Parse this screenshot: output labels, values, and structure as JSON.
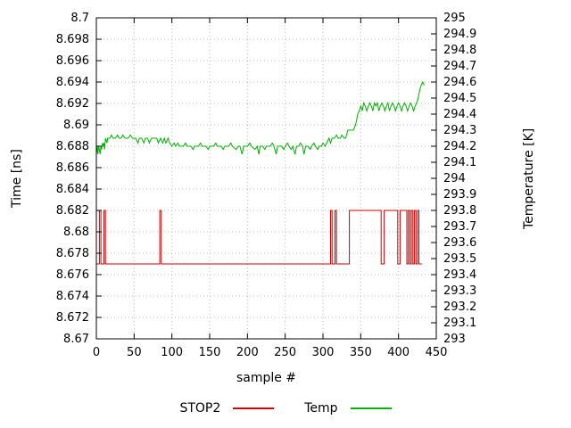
{
  "colors": {
    "stop2": "#cc0000",
    "temp": "#00b000",
    "grid": "#b8b8b8",
    "border": "#000000",
    "text": "#000000"
  },
  "legend": {
    "stop2_label": "STOP2",
    "temp_label": "Temp"
  },
  "chart_data": {
    "type": "line",
    "title": "",
    "xlabel": "sample #",
    "ylabel_left": "Time [ns]",
    "ylabel_right": "Temperature [K]",
    "x_range": [
      0,
      450
    ],
    "y_left_range": [
      8.67,
      8.7
    ],
    "y_right_range": [
      293,
      295
    ],
    "grid": true,
    "legend_position": "bottom-center",
    "x_ticks": [
      0,
      50,
      100,
      150,
      200,
      250,
      300,
      350,
      400,
      450
    ],
    "x_tick_labels": [
      "0",
      "50",
      "100",
      "150",
      "200",
      "250",
      "300",
      "350",
      "400",
      "450"
    ],
    "y_left_ticks": [
      8.67,
      8.672,
      8.674,
      8.676,
      8.678,
      8.68,
      8.682,
      8.684,
      8.686,
      8.688,
      8.69,
      8.692,
      8.694,
      8.696,
      8.698,
      8.7
    ],
    "y_left_tick_labels": [
      "8.67",
      "8.672",
      "8.674",
      "8.676",
      "8.678",
      "8.68",
      "8.682",
      "8.684",
      "8.686",
      "8.688",
      "8.69",
      "8.692",
      "8.694",
      "8.696",
      "8.698",
      "8.7"
    ],
    "y_right_ticks": [
      293,
      293.1,
      293.2,
      293.3,
      293.4,
      293.5,
      293.6,
      293.7,
      293.8,
      293.9,
      294,
      294.1,
      294.2,
      294.3,
      294.4,
      294.5,
      294.6,
      294.7,
      294.8,
      294.9,
      295
    ],
    "y_right_tick_labels": [
      "293",
      "293.1",
      "293.2",
      "293.3",
      "293.4",
      "293.5",
      "293.6",
      "293.7",
      "293.8",
      "293.9",
      "294",
      "294.1",
      "294.2",
      "294.3",
      "294.4",
      "294.5",
      "294.6",
      "294.7",
      "294.8",
      "294.9",
      "295"
    ],
    "series": [
      {
        "name": "STOP2",
        "axis": "left",
        "color": "#cc0000",
        "points": [
          [
            0,
            8.677
          ],
          [
            4,
            8.677
          ],
          [
            4,
            8.682
          ],
          [
            6,
            8.682
          ],
          [
            6,
            8.677
          ],
          [
            10,
            8.677
          ],
          [
            10,
            8.682
          ],
          [
            12,
            8.682
          ],
          [
            12,
            8.677
          ],
          [
            84,
            8.677
          ],
          [
            84,
            8.682
          ],
          [
            86,
            8.682
          ],
          [
            86,
            8.677
          ],
          [
            310,
            8.677
          ],
          [
            310,
            8.682
          ],
          [
            312,
            8.682
          ],
          [
            312,
            8.677
          ],
          [
            316,
            8.677
          ],
          [
            316,
            8.682
          ],
          [
            318,
            8.682
          ],
          [
            318,
            8.677
          ],
          [
            335,
            8.677
          ],
          [
            335,
            8.682
          ],
          [
            377,
            8.682
          ],
          [
            377,
            8.677
          ],
          [
            381,
            8.677
          ],
          [
            381,
            8.682
          ],
          [
            399,
            8.682
          ],
          [
            399,
            8.677
          ],
          [
            402,
            8.677
          ],
          [
            402,
            8.682
          ],
          [
            411,
            8.682
          ],
          [
            411,
            8.677
          ],
          [
            413,
            8.677
          ],
          [
            413,
            8.682
          ],
          [
            415,
            8.682
          ],
          [
            415,
            8.677
          ],
          [
            417,
            8.677
          ],
          [
            417,
            8.682
          ],
          [
            419,
            8.682
          ],
          [
            419,
            8.677
          ],
          [
            421,
            8.677
          ],
          [
            421,
            8.682
          ],
          [
            423,
            8.682
          ],
          [
            423,
            8.677
          ],
          [
            425,
            8.677
          ],
          [
            425,
            8.682
          ],
          [
            427,
            8.682
          ],
          [
            427,
            8.677
          ],
          [
            431,
            8.677
          ]
        ]
      },
      {
        "name": "Temp",
        "axis": "right",
        "color": "#00b000",
        "points": [
          [
            0,
            294.15
          ],
          [
            1,
            294.2
          ],
          [
            2,
            294.15
          ],
          [
            3,
            294.2
          ],
          [
            4,
            294.18
          ],
          [
            5,
            294.15
          ],
          [
            6,
            294.2
          ],
          [
            7,
            294.18
          ],
          [
            8,
            294.22
          ],
          [
            9,
            294.2
          ],
          [
            10,
            294.22
          ],
          [
            11,
            294.18
          ],
          [
            12,
            294.25
          ],
          [
            14,
            294.22
          ],
          [
            15,
            294.25
          ],
          [
            18,
            294.25
          ],
          [
            20,
            294.27
          ],
          [
            22,
            294.25
          ],
          [
            25,
            294.25
          ],
          [
            28,
            294.27
          ],
          [
            30,
            294.25
          ],
          [
            33,
            294.25
          ],
          [
            35,
            294.27
          ],
          [
            38,
            294.25
          ],
          [
            42,
            294.25
          ],
          [
            45,
            294.27
          ],
          [
            48,
            294.25
          ],
          [
            52,
            294.25
          ],
          [
            55,
            294.22
          ],
          [
            57,
            294.25
          ],
          [
            60,
            294.25
          ],
          [
            63,
            294.22
          ],
          [
            65,
            294.25
          ],
          [
            68,
            294.25
          ],
          [
            70,
            294.22
          ],
          [
            73,
            294.25
          ],
          [
            76,
            294.25
          ],
          [
            80,
            294.25
          ],
          [
            82,
            294.22
          ],
          [
            85,
            294.25
          ],
          [
            88,
            294.22
          ],
          [
            90,
            294.25
          ],
          [
            92,
            294.22
          ],
          [
            95,
            294.25
          ],
          [
            97,
            294.22
          ],
          [
            100,
            294.2
          ],
          [
            103,
            294.22
          ],
          [
            105,
            294.2
          ],
          [
            108,
            294.22
          ],
          [
            110,
            294.2
          ],
          [
            115,
            294.2
          ],
          [
            118,
            294.22
          ],
          [
            120,
            294.2
          ],
          [
            125,
            294.2
          ],
          [
            128,
            294.18
          ],
          [
            130,
            294.2
          ],
          [
            135,
            294.2
          ],
          [
            138,
            294.22
          ],
          [
            140,
            294.2
          ],
          [
            145,
            294.2
          ],
          [
            148,
            294.18
          ],
          [
            150,
            294.2
          ],
          [
            155,
            294.2
          ],
          [
            158,
            294.22
          ],
          [
            160,
            294.2
          ],
          [
            165,
            294.2
          ],
          [
            168,
            294.18
          ],
          [
            170,
            294.2
          ],
          [
            175,
            294.2
          ],
          [
            178,
            294.22
          ],
          [
            180,
            294.2
          ],
          [
            185,
            294.18
          ],
          [
            188,
            294.2
          ],
          [
            190,
            294.2
          ],
          [
            193,
            294.15
          ],
          [
            195,
            294.2
          ],
          [
            200,
            294.2
          ],
          [
            203,
            294.22
          ],
          [
            205,
            294.2
          ],
          [
            210,
            294.18
          ],
          [
            213,
            294.2
          ],
          [
            215,
            294.15
          ],
          [
            217,
            294.2
          ],
          [
            220,
            294.2
          ],
          [
            223,
            294.18
          ],
          [
            225,
            294.2
          ],
          [
            230,
            294.2
          ],
          [
            233,
            294.22
          ],
          [
            235,
            294.2
          ],
          [
            238,
            294.15
          ],
          [
            240,
            294.2
          ],
          [
            245,
            294.2
          ],
          [
            248,
            294.18
          ],
          [
            250,
            294.2
          ],
          [
            253,
            294.22
          ],
          [
            255,
            294.2
          ],
          [
            258,
            294.18
          ],
          [
            260,
            294.2
          ],
          [
            263,
            294.15
          ],
          [
            265,
            294.2
          ],
          [
            268,
            294.2
          ],
          [
            270,
            294.22
          ],
          [
            273,
            294.2
          ],
          [
            275,
            294.15
          ],
          [
            277,
            294.2
          ],
          [
            280,
            294.2
          ],
          [
            283,
            294.18
          ],
          [
            285,
            294.2
          ],
          [
            288,
            294.22
          ],
          [
            290,
            294.2
          ],
          [
            293,
            294.18
          ],
          [
            295,
            294.2
          ],
          [
            298,
            294.2
          ],
          [
            300,
            294.22
          ],
          [
            303,
            294.2
          ],
          [
            305,
            294.22
          ],
          [
            308,
            294.25
          ],
          [
            310,
            294.22
          ],
          [
            312,
            294.25
          ],
          [
            315,
            294.25
          ],
          [
            318,
            294.27
          ],
          [
            320,
            294.25
          ],
          [
            323,
            294.25
          ],
          [
            325,
            294.27
          ],
          [
            328,
            294.25
          ],
          [
            330,
            294.25
          ],
          [
            333,
            294.3
          ],
          [
            335,
            294.3
          ],
          [
            338,
            294.3
          ],
          [
            340,
            294.3
          ],
          [
            342,
            294.32
          ],
          [
            344,
            294.35
          ],
          [
            346,
            294.4
          ],
          [
            348,
            294.42
          ],
          [
            350,
            294.45
          ],
          [
            352,
            294.42
          ],
          [
            354,
            294.47
          ],
          [
            356,
            294.45
          ],
          [
            358,
            294.42
          ],
          [
            360,
            294.45
          ],
          [
            362,
            294.47
          ],
          [
            364,
            294.45
          ],
          [
            366,
            294.42
          ],
          [
            368,
            294.47
          ],
          [
            370,
            294.45
          ],
          [
            372,
            294.47
          ],
          [
            374,
            294.42
          ],
          [
            376,
            294.45
          ],
          [
            378,
            294.47
          ],
          [
            380,
            294.45
          ],
          [
            382,
            294.42
          ],
          [
            384,
            294.45
          ],
          [
            386,
            294.47
          ],
          [
            388,
            294.42
          ],
          [
            390,
            294.45
          ],
          [
            392,
            294.47
          ],
          [
            394,
            294.45
          ],
          [
            396,
            294.42
          ],
          [
            398,
            294.45
          ],
          [
            400,
            294.47
          ],
          [
            402,
            294.45
          ],
          [
            404,
            294.42
          ],
          [
            406,
            294.45
          ],
          [
            408,
            294.47
          ],
          [
            410,
            294.45
          ],
          [
            412,
            294.42
          ],
          [
            414,
            294.45
          ],
          [
            416,
            294.47
          ],
          [
            418,
            294.45
          ],
          [
            420,
            294.42
          ],
          [
            422,
            294.45
          ],
          [
            424,
            294.47
          ],
          [
            426,
            294.5
          ],
          [
            428,
            294.55
          ],
          [
            430,
            294.58
          ],
          [
            432,
            294.6
          ],
          [
            434,
            294.58
          ]
        ]
      }
    ]
  }
}
